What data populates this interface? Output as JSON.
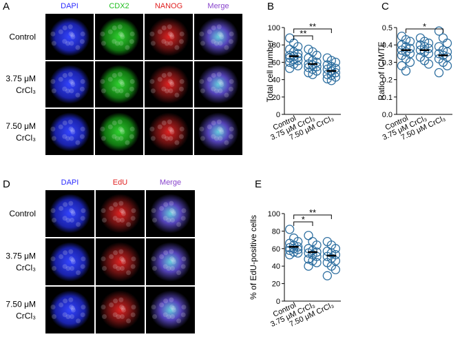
{
  "panels": {
    "a": {
      "letter": "A",
      "columns": [
        {
          "text": "DAPI",
          "color": "#2a2aff"
        },
        {
          "text": "CDX2",
          "color": "#1fbf1f"
        },
        {
          "text": "NANOG",
          "color": "#e02020"
        },
        {
          "text": "Merge",
          "color": "#8844cc"
        }
      ],
      "rows": [
        [
          "Control"
        ],
        [
          "3.75 μM",
          "CrCl₃"
        ],
        [
          "7.50 μM",
          "CrCl₃"
        ]
      ]
    },
    "d": {
      "letter": "D",
      "columns": [
        {
          "text": "DAPI",
          "color": "#2a2aff"
        },
        {
          "text": "EdU",
          "color": "#e02020"
        },
        {
          "text": "Merge",
          "color": "#8844cc"
        }
      ],
      "rows": [
        [
          "Control"
        ],
        [
          "3.75 μM",
          "CrCl₃"
        ],
        [
          "7.50 μM",
          "CrCl₃"
        ]
      ]
    }
  },
  "chart_data": [
    {
      "type": "strip",
      "letter": "B",
      "ylabel": "Total cell number",
      "color": "#2e6fa0",
      "categories": [
        "Control",
        "3.75 μM CrCl₃",
        "7.50 μM CrCl₃"
      ],
      "ylim": [
        0,
        100
      ],
      "yticks": [
        0,
        20,
        40,
        60,
        80,
        100
      ],
      "groups": [
        {
          "values": [
            88,
            82,
            78,
            75,
            72,
            70,
            68,
            67,
            66,
            65,
            63,
            62,
            60,
            58,
            56,
            53
          ],
          "mean": 67
        },
        {
          "values": [
            75,
            72,
            68,
            65,
            62,
            60,
            58,
            57,
            55,
            54,
            52,
            50,
            48,
            46
          ],
          "mean": 58
        },
        {
          "values": [
            65,
            62,
            60,
            57,
            55,
            53,
            52,
            50,
            48,
            46,
            45,
            43,
            41,
            39
          ],
          "mean": 50
        }
      ],
      "significance": [
        {
          "from": 0,
          "to": 1,
          "label": "**"
        },
        {
          "from": 0,
          "to": 2,
          "label": "**"
        }
      ]
    },
    {
      "type": "strip",
      "letter": "C",
      "ylabel": "Ratio of ICM/TE",
      "color": "#2e6fa0",
      "categories": [
        "Control",
        "3.75 μM CrCl₃",
        "7.50 μM CrCl₃"
      ],
      "ylim": [
        0,
        0.5
      ],
      "yticks": [
        {
          "value": 0,
          "label": "0.0"
        },
        0.1,
        0.2,
        0.3,
        0.4,
        0.5
      ],
      "groups": [
        {
          "values": [
            0.45,
            0.43,
            0.42,
            0.4,
            0.39,
            0.38,
            0.37,
            0.36,
            0.35,
            0.34,
            0.32,
            0.3,
            0.28,
            0.25
          ],
          "mean": 0.37
        },
        {
          "values": [
            0.44,
            0.42,
            0.41,
            0.4,
            0.39,
            0.38,
            0.37,
            0.36,
            0.35,
            0.33,
            0.31,
            0.29
          ],
          "mean": 0.37
        },
        {
          "values": [
            0.48,
            0.44,
            0.41,
            0.39,
            0.37,
            0.36,
            0.35,
            0.34,
            0.33,
            0.32,
            0.3,
            0.28,
            0.24
          ],
          "mean": 0.34
        }
      ],
      "significance": [
        {
          "from": 0,
          "to": 2,
          "label": "*"
        }
      ]
    },
    {
      "type": "strip",
      "letter": "E",
      "ylabel": "% of EdU-positive cells",
      "color": "#2e6fa0",
      "categories": [
        "Control",
        "3.75 μM CrCl₃",
        "7.50 μM CrCl₃"
      ],
      "ylim": [
        0,
        100
      ],
      "yticks": [
        0,
        20,
        40,
        60,
        80,
        100
      ],
      "groups": [
        {
          "values": [
            82,
            72,
            68,
            66,
            64,
            62,
            61,
            60,
            59,
            58,
            56,
            55,
            53
          ],
          "mean": 62
        },
        {
          "values": [
            75,
            68,
            64,
            60,
            58,
            56,
            55,
            53,
            51,
            48,
            46,
            44,
            40
          ],
          "mean": 56
        },
        {
          "values": [
            68,
            64,
            60,
            57,
            55,
            53,
            51,
            49,
            46,
            44,
            40,
            36,
            29
          ],
          "mean": 52
        }
      ],
      "significance": [
        {
          "from": 0,
          "to": 1,
          "label": "*"
        },
        {
          "from": 0,
          "to": 2,
          "label": "**"
        }
      ]
    }
  ]
}
